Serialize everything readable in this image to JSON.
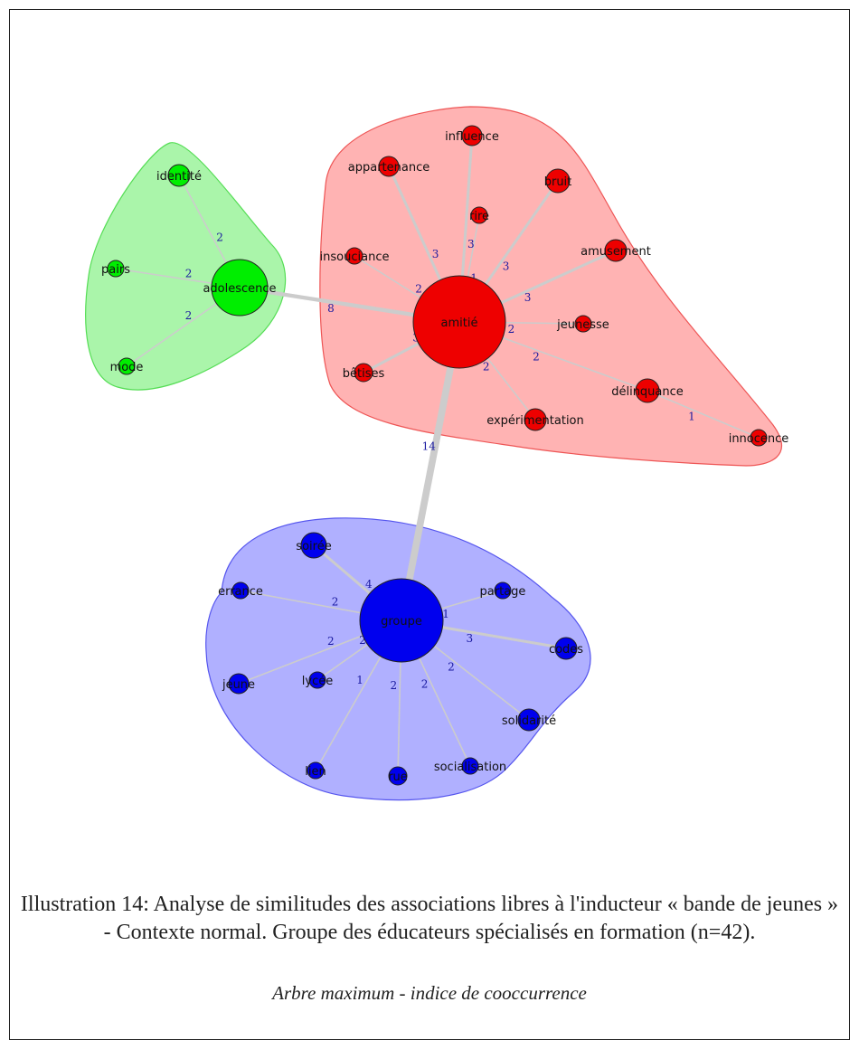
{
  "caption": "Illustration 14:  Analyse de similitudes des associations libres à l'inducteur « bande de jeunes » - Contexte normal. Groupe des éducateurs spécialisés en formation (n=42).",
  "subcaption": "Arbre maximum - indice de cooccurrence",
  "colors": {
    "green": "#00ee00",
    "green_hull": "#aaf5aa",
    "green_stroke": "#55dd55",
    "red": "#ee0000",
    "red_hull": "#ffb3b3",
    "red_stroke": "#ee5555",
    "blue": "#0000ee",
    "blue_hull": "#b0b0ff",
    "blue_stroke": "#5555ee",
    "edge": "#cccccc",
    "edge_label": "#1a1aa0"
  },
  "nodes": [
    {
      "id": "adolescence",
      "label": "adolescence",
      "group": "green"
    },
    {
      "id": "identite",
      "label": "identité",
      "group": "green"
    },
    {
      "id": "pairs",
      "label": "pairs",
      "group": "green"
    },
    {
      "id": "mode",
      "label": "mode",
      "group": "green"
    },
    {
      "id": "amitie",
      "label": "amitié",
      "group": "red"
    },
    {
      "id": "influence",
      "label": "influence",
      "group": "red"
    },
    {
      "id": "appartenance",
      "label": "appartenance",
      "group": "red"
    },
    {
      "id": "rire",
      "label": "rire",
      "group": "red"
    },
    {
      "id": "bruit",
      "label": "bruit",
      "group": "red"
    },
    {
      "id": "amusement",
      "label": "amusement",
      "group": "red"
    },
    {
      "id": "insouciance",
      "label": "insouciance",
      "group": "red"
    },
    {
      "id": "jeunesse",
      "label": "jeunesse",
      "group": "red"
    },
    {
      "id": "betises",
      "label": "bêtises",
      "group": "red"
    },
    {
      "id": "delinquance",
      "label": "délinquance",
      "group": "red"
    },
    {
      "id": "experimentation",
      "label": "expérimentation",
      "group": "red"
    },
    {
      "id": "innocence",
      "label": "innocence",
      "group": "red"
    },
    {
      "id": "groupe",
      "label": "groupe",
      "group": "blue"
    },
    {
      "id": "soiree",
      "label": "soirée",
      "group": "blue"
    },
    {
      "id": "errance",
      "label": "errance",
      "group": "blue"
    },
    {
      "id": "partage",
      "label": "partage",
      "group": "blue"
    },
    {
      "id": "codes",
      "label": "codes",
      "group": "blue"
    },
    {
      "id": "jeune",
      "label": "jeune",
      "group": "blue"
    },
    {
      "id": "lycee",
      "label": "lycée",
      "group": "blue"
    },
    {
      "id": "solidarite",
      "label": "solidarité",
      "group": "blue"
    },
    {
      "id": "lien",
      "label": "lien",
      "group": "blue"
    },
    {
      "id": "rue",
      "label": "rue",
      "group": "blue"
    },
    {
      "id": "socialisation",
      "label": "socialisation",
      "group": "blue"
    }
  ],
  "edges": [
    {
      "source": "adolescence",
      "target": "amitie",
      "weight": 8
    },
    {
      "source": "amitie",
      "target": "groupe",
      "weight": 14
    },
    {
      "source": "adolescence",
      "target": "identite",
      "weight": 2
    },
    {
      "source": "adolescence",
      "target": "pairs",
      "weight": 2
    },
    {
      "source": "adolescence",
      "target": "mode",
      "weight": 2
    },
    {
      "source": "amitie",
      "target": "influence",
      "weight": 3
    },
    {
      "source": "amitie",
      "target": "appartenance",
      "weight": 3
    },
    {
      "source": "amitie",
      "target": "rire",
      "weight": 1
    },
    {
      "source": "amitie",
      "target": "bruit",
      "weight": 3
    },
    {
      "source": "amitie",
      "target": "amusement",
      "weight": 3
    },
    {
      "source": "amitie",
      "target": "insouciance",
      "weight": 2
    },
    {
      "source": "amitie",
      "target": "jeunesse",
      "weight": 2
    },
    {
      "source": "amitie",
      "target": "betises",
      "weight": 3
    },
    {
      "source": "amitie",
      "target": "delinquance",
      "weight": 2
    },
    {
      "source": "amitie",
      "target": "experimentation",
      "weight": 2
    },
    {
      "source": "delinquance",
      "target": "innocence",
      "weight": 1
    },
    {
      "source": "groupe",
      "target": "soiree",
      "weight": 4
    },
    {
      "source": "groupe",
      "target": "errance",
      "weight": 2
    },
    {
      "source": "groupe",
      "target": "partage",
      "weight": 1
    },
    {
      "source": "groupe",
      "target": "codes",
      "weight": 3
    },
    {
      "source": "groupe",
      "target": "jeune",
      "weight": 2
    },
    {
      "source": "groupe",
      "target": "lycee",
      "weight": 2
    },
    {
      "source": "groupe",
      "target": "solidarite",
      "weight": 2
    },
    {
      "source": "groupe",
      "target": "lien",
      "weight": 1
    },
    {
      "source": "groupe",
      "target": "rue",
      "weight": 2
    },
    {
      "source": "groupe",
      "target": "socialisation",
      "weight": 2
    }
  ]
}
